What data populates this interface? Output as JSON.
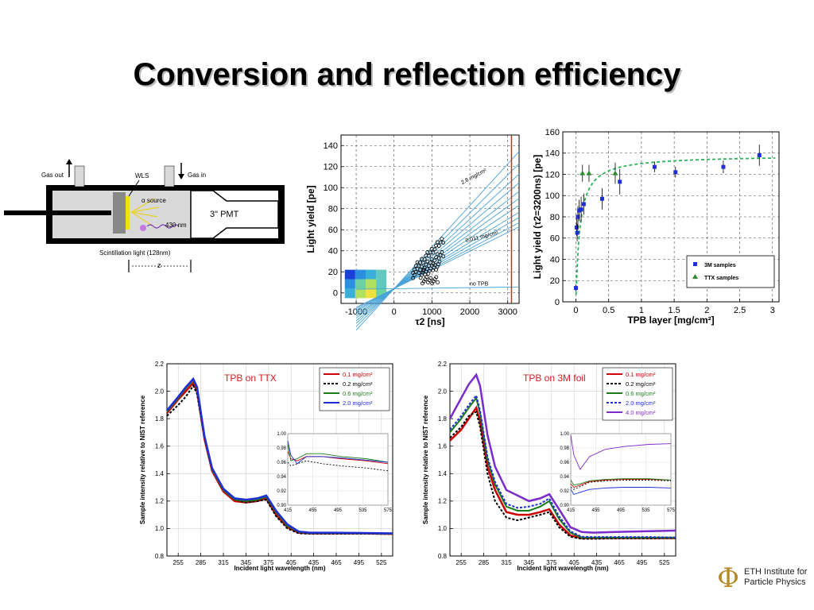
{
  "slide": {
    "title": "Conversion and reflection efficiency"
  },
  "logo": {
    "symbol": "Φ",
    "line1": "ETH Institute for",
    "line2": "Particle Physics"
  },
  "setup": {
    "gas_out": "Gas out",
    "gas_in": "Gas in",
    "wls": "WLS",
    "alpha": "α source",
    "nm430": "430 nm",
    "pmt": "3\" PMT",
    "scint": "Scintillation light (128nm)",
    "z": "z",
    "colors": {
      "body": "#d9d9d9",
      "wall": "#000000",
      "pmt": "#ffffff"
    }
  },
  "chart_data": [
    {
      "type": "scatter",
      "xlabel": "τ2 [ns]",
      "ylabel": "Light yield [pe]",
      "xlim": [
        -1400,
        3300
      ],
      "ylim": [
        -10,
        150
      ],
      "xticks": [
        -1000,
        0,
        1000,
        2000,
        3000
      ],
      "yticks": [
        0,
        20,
        40,
        60,
        80,
        100,
        120,
        140
      ],
      "xtick_labels": [
        "-1000",
        "0",
        "1000",
        "2000",
        "3000"
      ],
      "ytick_labels": [
        "0",
        "20",
        "40",
        "60",
        "80",
        "100",
        "120",
        "140"
      ],
      "grid": true,
      "annotations": [
        "2.8 mg/cm²",
        "0.011 mg/cm²",
        "no TPB"
      ],
      "cutoff_x": 3100,
      "fit_slopes": [
        0.0395,
        0.036,
        0.033,
        0.0305,
        0.028,
        0.026,
        0.024,
        0.022,
        0.0205,
        0.019,
        0.0178,
        0.0005
      ],
      "clusters": [
        {
          "x0": 500,
          "x1": 1300,
          "slope": 0.036,
          "n": 22
        },
        {
          "x0": 500,
          "x1": 1300,
          "slope": 0.026,
          "n": 22
        },
        {
          "x0": 700,
          "x1": 1200,
          "slope": 0.019,
          "n": 18
        },
        {
          "x0": 750,
          "x1": 1150,
          "slope": 0.0005,
          "n": 12,
          "y0": 12
        }
      ],
      "colors": {
        "fit": "#4aa3d8",
        "points": "#000000",
        "cutoff": "#d62728"
      }
    },
    {
      "type": "scatter",
      "xlabel": "TPB layer [mg/cm²]",
      "ylabel": "Light yield (τ2=3200ns) [pe]",
      "xlim": [
        -0.2,
        3.1
      ],
      "ylim": [
        0,
        160
      ],
      "xticks": [
        0,
        0.5,
        1,
        1.5,
        2,
        2.5,
        3
      ],
      "yticks": [
        0,
        20,
        40,
        60,
        80,
        100,
        120,
        140,
        160
      ],
      "xtick_labels": [
        "0",
        "0.5",
        "1",
        "1.5",
        "2",
        "2.5",
        "3"
      ],
      "ytick_labels": [
        "0",
        "20",
        "40",
        "60",
        "80",
        "100",
        "120",
        "140",
        "160"
      ],
      "grid": true,
      "legend": "bottom-right",
      "series": [
        {
          "name": "3M    samples",
          "marker": "square",
          "color": "#1f2fd6",
          "x": [
            0.0,
            0.011,
            0.02,
            0.03,
            0.05,
            0.08,
            0.12,
            0.4,
            0.67,
            1.2,
            1.52,
            2.25,
            2.8
          ],
          "y": [
            13,
            70,
            65,
            80,
            86,
            87,
            92,
            97,
            113,
            127,
            122,
            127,
            138
          ],
          "err": [
            3,
            8,
            8,
            10,
            10,
            12,
            10,
            10,
            12,
            5,
            5,
            6,
            10
          ]
        },
        {
          "name": "TTX  samples",
          "marker": "triangle",
          "color": "#2e8b2e",
          "x": [
            0.1,
            0.2,
            0.6
          ],
          "y": [
            121,
            121,
            121
          ],
          "err": [
            8,
            8,
            10
          ]
        }
      ],
      "fit": {
        "color": "#2bb35a",
        "a": 138,
        "b": 0.06
      }
    },
    {
      "type": "line",
      "title": "TPB on TTX",
      "xlabel": "Incident light wavelength (nm)",
      "ylabel": "Sample intensity relative to NIST reference",
      "xlim": [
        240,
        540
      ],
      "ylim": [
        0.8,
        2.2
      ],
      "xticks": [
        255,
        285,
        315,
        345,
        375,
        405,
        435,
        465,
        495,
        525
      ],
      "yticks": [
        0.8,
        1.0,
        1.2,
        1.4,
        1.6,
        1.8,
        2.0,
        2.2
      ],
      "xtick_labels": [
        "255",
        "285",
        "315",
        "345",
        "375",
        "405",
        "435",
        "465",
        "495",
        "525"
      ],
      "ytick_labels": [
        "0.8",
        "1.0",
        "1.2",
        "1.4",
        "1.6",
        "1.8",
        "2.0",
        "2.2"
      ],
      "grid": true,
      "legend": "top-right",
      "x": [
        240,
        255,
        265,
        275,
        280,
        290,
        300,
        315,
        330,
        345,
        360,
        372,
        385,
        400,
        415,
        430,
        460,
        500,
        540
      ],
      "series": [
        {
          "name": "0.1 mg/cm²",
          "color": "#cc0000",
          "dash": "",
          "width": 2.5,
          "values": [
            1.84,
            1.94,
            2.0,
            2.06,
            2.0,
            1.65,
            1.42,
            1.27,
            1.2,
            1.19,
            1.2,
            1.22,
            1.1,
            1.01,
            0.97,
            0.965,
            0.965,
            0.965,
            0.96
          ]
        },
        {
          "name": "0.2 mg/cm²",
          "color": "#000000",
          "dash": "3,2",
          "width": 2,
          "values": [
            1.82,
            1.9,
            1.96,
            2.04,
            1.98,
            1.66,
            1.44,
            1.28,
            1.21,
            1.19,
            1.2,
            1.21,
            1.09,
            1.0,
            0.965,
            0.962,
            0.962,
            0.962,
            0.96
          ]
        },
        {
          "name": "0.6 mg/cm²",
          "color": "#1a7a1a",
          "dash": "",
          "width": 2,
          "values": [
            1.85,
            1.95,
            2.02,
            2.08,
            2.02,
            1.66,
            1.43,
            1.28,
            1.21,
            1.2,
            1.21,
            1.23,
            1.12,
            1.02,
            0.975,
            0.968,
            0.968,
            0.966,
            0.962
          ]
        },
        {
          "name": "2.0 mg/cm²",
          "color": "#1f2fd6",
          "dash": "",
          "width": 2.5,
          "values": [
            1.86,
            1.96,
            2.03,
            2.09,
            2.03,
            1.67,
            1.44,
            1.29,
            1.22,
            1.21,
            1.22,
            1.24,
            1.13,
            1.03,
            0.978,
            0.97,
            0.97,
            0.968,
            0.965
          ]
        }
      ],
      "inset": {
        "xlim": [
          415,
          575
        ],
        "ylim": [
          0.9,
          1.0
        ],
        "xticks": [
          415,
          455,
          495,
          535,
          575
        ],
        "yticks": [
          0.9,
          0.92,
          0.94,
          0.96,
          0.98,
          1.0
        ],
        "xtick_labels": [
          "415",
          "455",
          "495",
          "535",
          "575"
        ],
        "ytick_labels": [
          "0.90",
          "0.92",
          "0.94",
          "0.96",
          "0.98",
          "1.00"
        ],
        "x": [
          415,
          420,
          430,
          445,
          470,
          500,
          540,
          575
        ],
        "series": [
          {
            "color": "#cc0000",
            "dash": "",
            "values": [
              0.975,
              0.965,
              0.962,
              0.968,
              0.968,
              0.965,
              0.962,
              0.958
            ]
          },
          {
            "color": "#000000",
            "dash": "2,2",
            "values": [
              0.96,
              0.955,
              0.958,
              0.962,
              0.958,
              0.955,
              0.952,
              0.948
            ]
          },
          {
            "color": "#1a7a1a",
            "dash": "",
            "values": [
              0.985,
              0.962,
              0.965,
              0.972,
              0.972,
              0.968,
              0.965,
              0.96
            ]
          },
          {
            "color": "#1f2fd6",
            "dash": "",
            "values": [
              0.99,
              0.97,
              0.958,
              0.968,
              0.968,
              0.966,
              0.963,
              0.96
            ]
          }
        ]
      }
    },
    {
      "type": "line",
      "title": "TPB on 3M foil",
      "xlabel": "Incident light wavelength (nm)",
      "ylabel": "Sample intensity relative to NIST reference",
      "xlim": [
        240,
        540
      ],
      "ylim": [
        0.8,
        2.2
      ],
      "xticks": [
        255,
        285,
        315,
        345,
        375,
        405,
        435,
        465,
        495,
        525
      ],
      "yticks": [
        0.8,
        1.0,
        1.2,
        1.4,
        1.6,
        1.8,
        2.0,
        2.2
      ],
      "xtick_labels": [
        "255",
        "285",
        "315",
        "345",
        "375",
        "405",
        "435",
        "465",
        "495",
        "525"
      ],
      "ytick_labels": [
        "0.8",
        "1.0",
        "1.2",
        "1.4",
        "1.6",
        "1.8",
        "2.0",
        "2.2"
      ],
      "grid": true,
      "legend": "top-right",
      "x": [
        240,
        255,
        265,
        275,
        280,
        290,
        300,
        315,
        330,
        345,
        360,
        372,
        385,
        400,
        415,
        430,
        460,
        500,
        540
      ],
      "series": [
        {
          "name": "0.1 mg/cm²",
          "color": "#cc0000",
          "dash": "",
          "width": 2.5,
          "values": [
            1.64,
            1.72,
            1.8,
            1.88,
            1.78,
            1.45,
            1.28,
            1.12,
            1.1,
            1.1,
            1.12,
            1.14,
            1.03,
            0.95,
            0.93,
            0.93,
            0.93,
            0.93,
            0.93
          ]
        },
        {
          "name": "0.2 mg/cm²",
          "color": "#000000",
          "dash": "3,2",
          "width": 2,
          "values": [
            1.66,
            1.74,
            1.82,
            1.85,
            1.74,
            1.4,
            1.2,
            1.08,
            1.06,
            1.08,
            1.1,
            1.12,
            1.01,
            0.94,
            0.925,
            0.925,
            0.928,
            0.928,
            0.93
          ]
        },
        {
          "name": "0.6 mg/cm²",
          "color": "#1a7a1a",
          "dash": "",
          "width": 2,
          "values": [
            1.7,
            1.8,
            1.88,
            1.95,
            1.84,
            1.5,
            1.32,
            1.16,
            1.13,
            1.13,
            1.16,
            1.2,
            1.07,
            0.97,
            0.935,
            0.935,
            0.935,
            0.935,
            0.935
          ]
        },
        {
          "name": "2.0 mg/cm²",
          "color": "#1f2fd6",
          "dash": "3,2",
          "width": 2,
          "values": [
            1.72,
            1.82,
            1.9,
            1.97,
            1.86,
            1.52,
            1.34,
            1.18,
            1.15,
            1.16,
            1.18,
            1.22,
            1.09,
            0.98,
            0.94,
            0.938,
            0.938,
            0.938,
            0.935
          ]
        },
        {
          "name": "4.0 mg/cm²",
          "color": "#7a2bc9",
          "dash": "",
          "width": 2.5,
          "values": [
            1.8,
            1.95,
            2.05,
            2.12,
            2.04,
            1.68,
            1.45,
            1.28,
            1.24,
            1.2,
            1.22,
            1.25,
            1.14,
            1.01,
            0.975,
            0.97,
            0.975,
            0.98,
            0.985
          ]
        }
      ],
      "inset": {
        "xlim": [
          415,
          575
        ],
        "ylim": [
          0.9,
          1.0
        ],
        "xticks": [
          415,
          455,
          495,
          535,
          575
        ],
        "yticks": [
          0.9,
          0.92,
          0.94,
          0.96,
          0.98,
          1.0
        ],
        "xtick_labels": [
          "415",
          "455",
          "495",
          "535",
          "575"
        ],
        "ytick_labels": [
          "0.90",
          "0.92",
          "0.94",
          "0.96",
          "0.98",
          "1.00"
        ],
        "x": [
          415,
          420,
          430,
          445,
          470,
          500,
          540,
          575
        ],
        "series": [
          {
            "color": "#cc0000",
            "dash": "",
            "values": [
              0.93,
              0.925,
              0.928,
              0.933,
              0.935,
              0.936,
              0.936,
              0.935
            ]
          },
          {
            "color": "#000000",
            "dash": "2,2",
            "values": [
              0.925,
              0.922,
              0.926,
              0.932,
              0.934,
              0.935,
              0.935,
              0.934
            ]
          },
          {
            "color": "#1a7a1a",
            "dash": "",
            "values": [
              0.935,
              0.928,
              0.93,
              0.934,
              0.936,
              0.937,
              0.937,
              0.935
            ]
          },
          {
            "color": "#1f2fd6",
            "dash": "",
            "values": [
              0.922,
              0.915,
              0.918,
              0.922,
              0.924,
              0.925,
              0.925,
              0.924
            ]
          },
          {
            "color": "#7a2bc9",
            "dash": "",
            "values": [
              0.998,
              0.97,
              0.95,
              0.968,
              0.978,
              0.982,
              0.985,
              0.986
            ]
          }
        ]
      }
    }
  ]
}
